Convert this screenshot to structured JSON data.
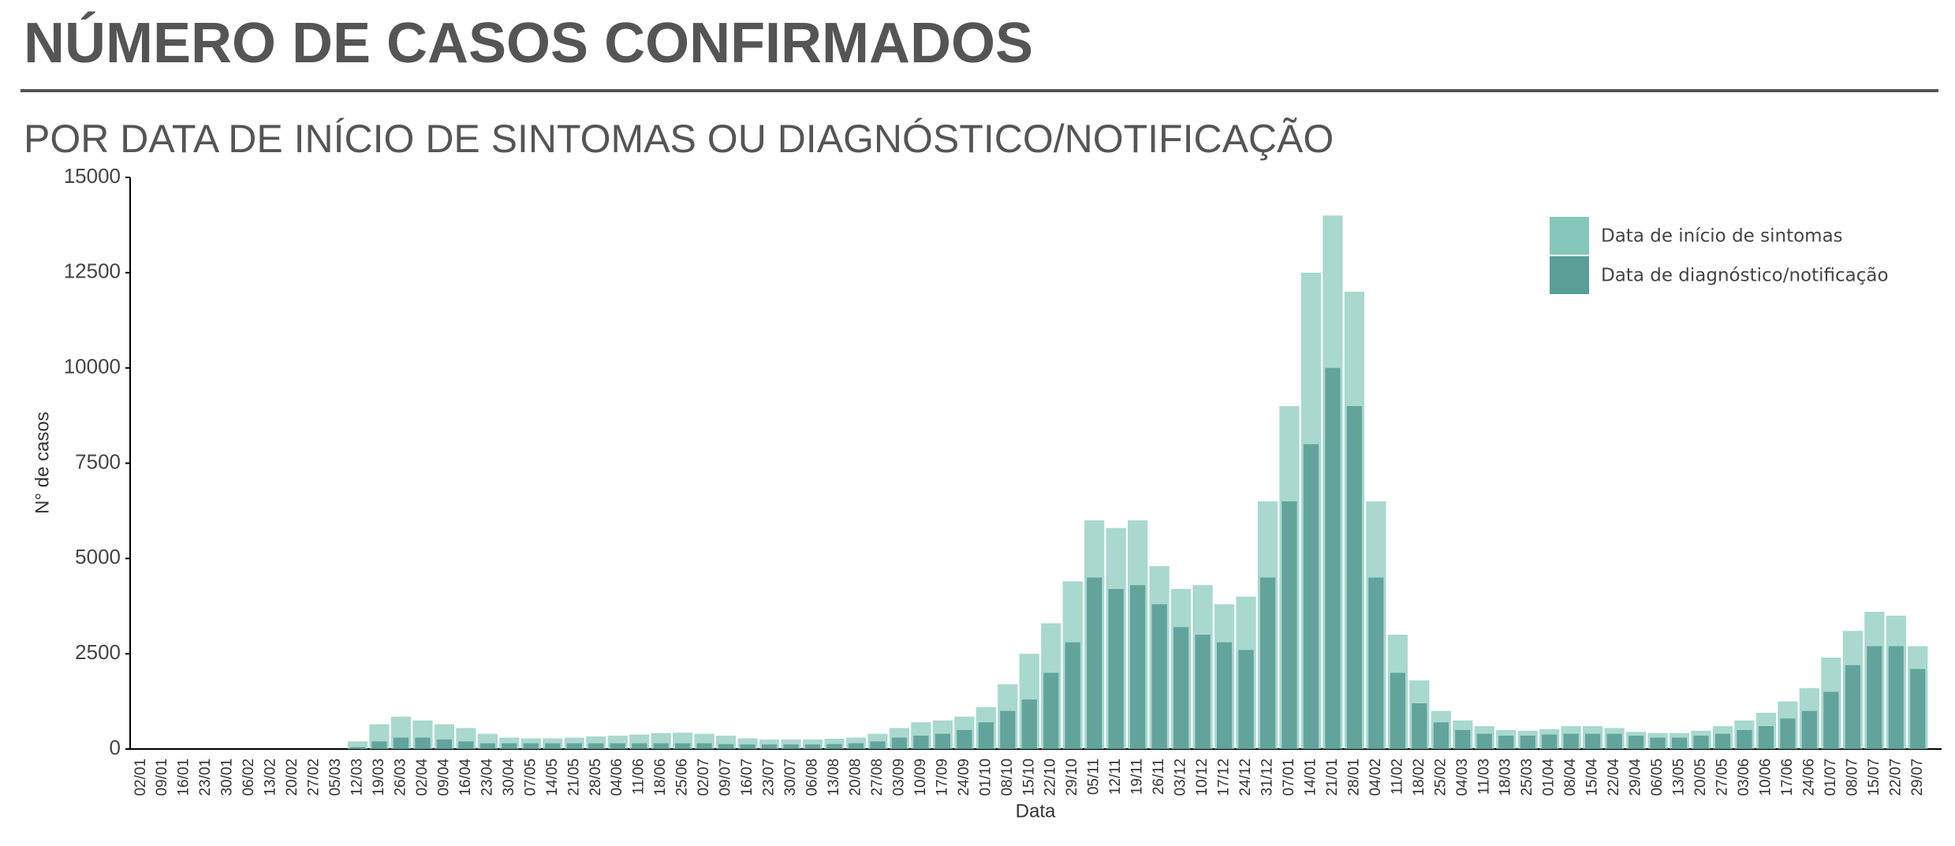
{
  "chart_data": {
    "type": "bar",
    "title": "NÚMERO DE CASOS CONFIRMADOS",
    "subtitle": "POR DATA DE INÍCIO DE SINTOMAS OU DIAGNÓSTICO/NOTIFICAÇÃO",
    "x_label": "Data",
    "y_label": "N° de casos",
    "categories": [
      "02/01",
      "09/01",
      "16/01",
      "23/01",
      "30/01",
      "06/02",
      "13/02",
      "20/02",
      "27/02",
      "05/03",
      "12/03",
      "19/03",
      "26/03",
      "02/04",
      "09/04",
      "16/04",
      "23/04",
      "30/04",
      "07/05",
      "14/05",
      "21/05",
      "28/05",
      "04/06",
      "11/06",
      "18/06",
      "25/06",
      "02/07",
      "09/07",
      "16/07",
      "23/07",
      "30/07",
      "06/08",
      "13/08",
      "20/08",
      "27/08",
      "03/09",
      "10/09",
      "17/09",
      "24/09",
      "01/10",
      "08/10",
      "15/10",
      "22/10",
      "29/10",
      "05/11",
      "12/11",
      "19/11",
      "26/11",
      "03/12",
      "10/12",
      "17/12",
      "24/12",
      "31/12",
      "07/01",
      "14/01",
      "21/01",
      "28/01",
      "04/02",
      "11/02",
      "18/02",
      "25/02",
      "04/03",
      "11/03",
      "18/03",
      "25/03",
      "01/04",
      "08/04",
      "15/04",
      "22/04",
      "29/04",
      "06/05",
      "13/05",
      "20/05",
      "27/05",
      "03/06",
      "10/06",
      "17/06",
      "24/06",
      "01/07",
      "08/07",
      "15/07",
      "22/07",
      "29/07"
    ],
    "series": [
      {
        "name": "Data de início de sintomas",
        "color": "#85c7bb",
        "values": [
          0,
          0,
          0,
          0,
          0,
          0,
          0,
          0,
          0,
          0,
          200,
          650,
          850,
          750,
          650,
          550,
          400,
          300,
          280,
          280,
          300,
          330,
          350,
          380,
          420,
          430,
          400,
          350,
          280,
          250,
          250,
          250,
          270,
          300,
          400,
          550,
          700,
          750,
          850,
          1100,
          1700,
          2500,
          3300,
          4400,
          6000,
          5800,
          6000,
          4800,
          4200,
          4300,
          3800,
          4000,
          6500,
          9000,
          12500,
          14000,
          12000,
          6500,
          3000,
          1800,
          1000,
          750,
          600,
          500,
          480,
          520,
          600,
          600,
          550,
          450,
          420,
          420,
          480,
          600,
          750,
          950,
          1250,
          1600,
          2400,
          3100,
          3600,
          3500,
          2700
        ]
      },
      {
        "name": "Data de diagnóstico/notificação",
        "color": "#5a9e96",
        "values": [
          0,
          0,
          0,
          0,
          0,
          0,
          0,
          0,
          0,
          0,
          50,
          200,
          300,
          300,
          250,
          200,
          150,
          150,
          150,
          150,
          150,
          150,
          150,
          150,
          150,
          150,
          150,
          130,
          120,
          120,
          120,
          120,
          130,
          150,
          200,
          300,
          350,
          400,
          500,
          700,
          1000,
          1300,
          2000,
          2800,
          4500,
          4200,
          4300,
          3800,
          3200,
          3000,
          2800,
          2600,
          4500,
          6500,
          8000,
          10000,
          9000,
          4500,
          2000,
          1200,
          700,
          500,
          400,
          350,
          350,
          380,
          400,
          400,
          400,
          350,
          300,
          300,
          350,
          400,
          500,
          600,
          800,
          1000,
          1500,
          2200,
          2700,
          2700,
          2100
        ]
      }
    ],
    "ylim": [
      0,
      15000
    ],
    "yticks": [
      0,
      2500,
      5000,
      7500,
      10000,
      12500,
      15000
    ],
    "grid": false,
    "legend": "top-right"
  }
}
